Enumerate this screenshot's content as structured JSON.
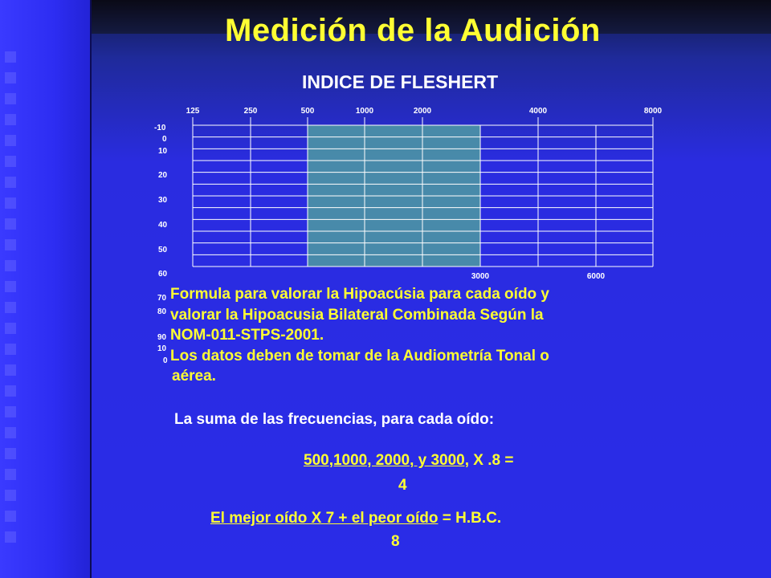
{
  "slide": {
    "title": "Medición de la  Audición",
    "subtitle": "INDICE DE FLESHERT"
  },
  "chart_data": {
    "type": "table",
    "top_ticks": [
      "125",
      "250",
      "500",
      "1000",
      "2000",
      "4000",
      "8000"
    ],
    "bottom_ticks": [
      "3000",
      "6000"
    ],
    "db_labels": [
      "-10",
      "0",
      "10",
      "20",
      "30",
      "40",
      "50",
      "60",
      "70",
      "80",
      "90",
      "10",
      "0"
    ],
    "shaded_range": [
      "500",
      "3000"
    ],
    "colors": {
      "shade": "#4a8fa6",
      "grid": "#ffffff"
    }
  },
  "text": {
    "para1_line1": "Formula para valorar la Hipoacúsia para cada oído y",
    "para1_line2": "valorar la Hipoacusia Bilateral  Combinada Según la",
    "para1_line3": "NOM-011-STPS-2001.",
    "para2_line1": "Los datos deben de tomar de la Audiometría Tonal  o",
    "para2_line2": "aérea.",
    "sum_line": "La suma de las frecuencias, para  cada oído:",
    "formula1_underlined": "500,1000, 2000, y 3000,",
    "formula1_rest": "  X .8 =",
    "formula1_denominator": "4",
    "formula2_part1": "El mejor oído X   7  + el peor oído",
    "formula2_rest": " =  H.B.C.",
    "formula2_denominator": "8"
  }
}
